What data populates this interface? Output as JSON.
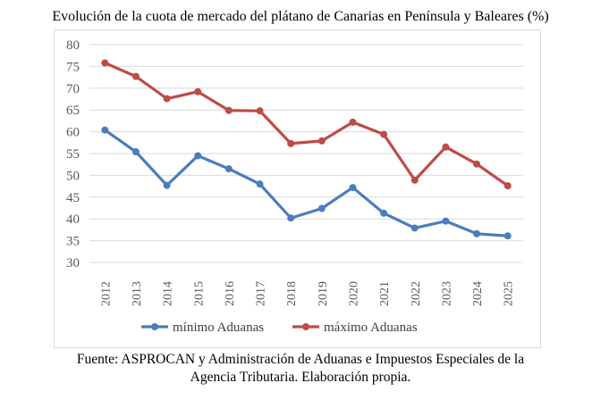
{
  "title": "Evolución de la cuota de mercado del plátano de Canarias en Península y Baleares (%)",
  "caption_line1": "Fuente: ASPROCAN y Administración de Aduanas e Impuestos Especiales de la",
  "caption_line2": "Agencia Tributaria. Elaboración propia.",
  "chart_data": {
    "type": "line",
    "title": "Evolución de la cuota de mercado del plátano de Canarias en Península y Baleares (%)",
    "categories": [
      "2012",
      "2013",
      "2014",
      "2015",
      "2016",
      "2017",
      "2018",
      "2019",
      "2020",
      "2021",
      "2022",
      "2023",
      "2024",
      "2025"
    ],
    "ylim": [
      30,
      80
    ],
    "yticks": [
      30,
      35,
      40,
      45,
      50,
      55,
      60,
      65,
      70,
      75,
      80
    ],
    "grid": true,
    "legend": "bottom",
    "series": [
      {
        "name": "mínimo Aduanas",
        "color": "#4a7ebb",
        "values": [
          60.4,
          55.4,
          47.7,
          54.5,
          51.5,
          48.0,
          40.2,
          42.4,
          47.2,
          41.3,
          37.9,
          39.5,
          36.6,
          36.1
        ]
      },
      {
        "name": "máximo Aduanas",
        "color": "#be4b48",
        "values": [
          75.8,
          72.7,
          67.6,
          69.2,
          64.9,
          64.8,
          57.3,
          57.9,
          62.2,
          59.4,
          48.9,
          56.5,
          52.6,
          47.6
        ]
      }
    ]
  }
}
